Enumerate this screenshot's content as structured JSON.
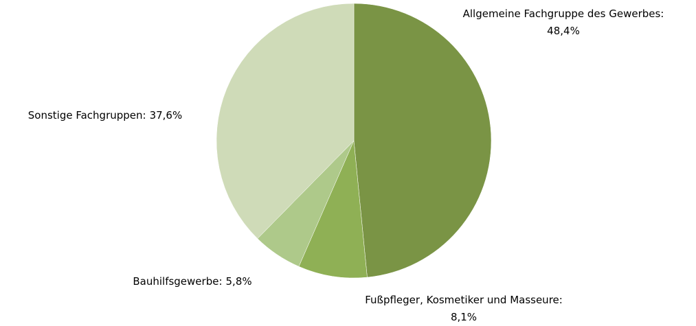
{
  "chart_data": {
    "type": "pie",
    "categories": [
      "Allgemeine Fachgruppe des Gewerbes:",
      "Fußpfleger, Kosmetiker und Masseure:",
      "Bauhilfsgewerbe:",
      "Sonstige Fachgruppen:"
    ],
    "values": [
      48.4,
      8.1,
      5.8,
      37.6
    ],
    "value_labels": [
      "48,4%",
      "8,1%",
      "5,8%",
      "37,6%"
    ],
    "colors": [
      "#7a9445",
      "#8fb055",
      "#aec98a",
      "#cfdbb8"
    ]
  }
}
